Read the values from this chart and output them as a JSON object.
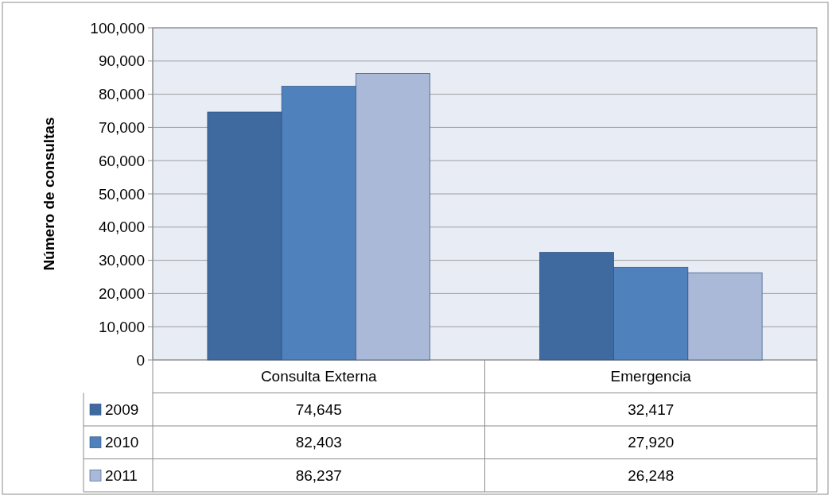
{
  "chart_data": {
    "type": "bar",
    "ylabel": "Número de consultas",
    "categories": [
      "Consulta Externa",
      "Emergencia"
    ],
    "series": [
      {
        "name": "2009",
        "color": "#3e6aa0",
        "values": [
          74645,
          32417
        ],
        "value_labels": [
          "74,645",
          "32,417"
        ]
      },
      {
        "name": "2010",
        "color": "#4f81bd",
        "values": [
          82403,
          27920
        ],
        "value_labels": [
          "82,403",
          "27,920"
        ]
      },
      {
        "name": "2011",
        "color": "#aab9d8",
        "values": [
          86237,
          26248
        ],
        "value_labels": [
          "86,237",
          "26,248"
        ]
      }
    ],
    "ylim": [
      0,
      100000
    ],
    "yticks": [
      0,
      {
        "value": 10000,
        "label": "10,000"
      },
      {
        "value": 20000,
        "label": "20,000"
      },
      {
        "value": 30000,
        "label": "30,000"
      },
      {
        "value": 40000,
        "label": "40,000"
      },
      {
        "value": 50000,
        "label": "50,000"
      },
      {
        "value": 60000,
        "label": "60,000"
      },
      {
        "value": 70000,
        "label": "70,000"
      },
      {
        "value": 80000,
        "label": "80,000"
      },
      {
        "value": 90000,
        "label": "90,000"
      },
      {
        "value": 100000,
        "label": "100,000"
      }
    ],
    "grid": "y",
    "legend": "bottom"
  }
}
